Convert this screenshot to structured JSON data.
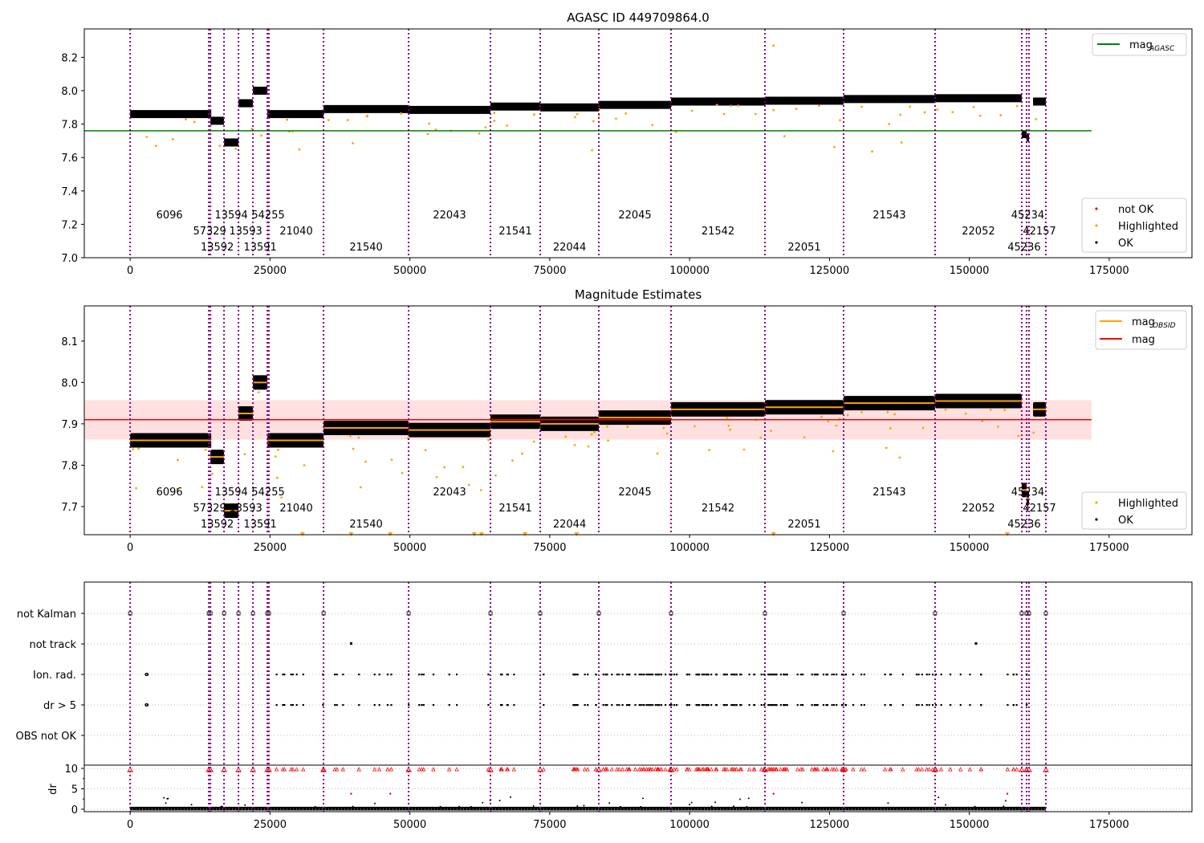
{
  "chart_data": [
    {
      "type": "scatter",
      "title": "AGASC ID 449709864.0",
      "xlim": [
        -8200,
        189800
      ],
      "ylim": [
        7.0,
        8.37
      ],
      "xticks": [
        0,
        25000,
        50000,
        75000,
        100000,
        125000,
        150000,
        175000
      ],
      "yticks": [
        "7.0",
        "7.2",
        "7.4",
        "7.6",
        "7.8",
        "8.0",
        "8.2"
      ],
      "mag_agasc": 7.76,
      "legend": {
        "placement": "top-right",
        "line_label": "mag",
        "line_sub": "AGASC"
      },
      "legend2": {
        "placement": "bottom-right",
        "entries": [
          "not OK",
          "Highlighted",
          "OK"
        ]
      }
    },
    {
      "type": "scatter",
      "title": "Magnitude Estimates",
      "xlim": [
        -8200,
        189800
      ],
      "ylim": [
        7.632,
        8.185
      ],
      "yticks": [
        "7.7",
        "7.8",
        "7.9",
        "8.0",
        "8.1"
      ],
      "mag": 7.91,
      "mag_band": [
        7.862,
        7.957
      ],
      "legend": {
        "placement": "top-right",
        "entries": [
          {
            "label": "mag",
            "sub": "OBSID"
          },
          {
            "label": "mag",
            "sub": ""
          }
        ]
      },
      "legend2": {
        "placement": "bottom-right",
        "entries": [
          "Highlighted",
          "OK"
        ]
      }
    },
    {
      "type": "scatter",
      "title": "",
      "categories": [
        "not Kalman",
        "not track",
        "Ion. rad.",
        "dr > 5",
        "OBS not OK"
      ],
      "dr_ylabel": "dr",
      "dr_ylim": [
        -0.6,
        10.8
      ],
      "dr_yticks": [
        "0",
        "5",
        "10"
      ]
    }
  ],
  "segments": [
    {
      "obsid": "6096",
      "start": 0,
      "end": 14058,
      "mag": 7.86
    },
    {
      "obsid": "57329",
      "start": 14058,
      "end": 14350,
      "mag": 7.86
    },
    {
      "obsid": "13592",
      "start": 14350,
      "end": 16784,
      "mag": 7.82
    },
    {
      "obsid": "13594",
      "start": 16784,
      "end": 19366,
      "mag": 7.69
    },
    {
      "obsid": "13593",
      "start": 19366,
      "end": 21948,
      "mag": 7.925
    },
    {
      "obsid": "13591",
      "start": 21948,
      "end": 24530,
      "mag": 8.0
    },
    {
      "obsid": "54255",
      "start": 24530,
      "end": 24800,
      "mag": 7.86
    },
    {
      "obsid": "21040",
      "start": 24800,
      "end": 34572,
      "mag": 7.86
    },
    {
      "obsid": "21540",
      "start": 34572,
      "end": 49778,
      "mag": 7.89
    },
    {
      "obsid": "22043",
      "start": 49778,
      "end": 64409,
      "mag": 7.885
    },
    {
      "obsid": "21541",
      "start": 64409,
      "end": 73303,
      "mag": 7.905
    },
    {
      "obsid": "22044",
      "start": 73303,
      "end": 83776,
      "mag": 7.9
    },
    {
      "obsid": "22045",
      "start": 83776,
      "end": 96686,
      "mag": 7.915
    },
    {
      "obsid": "21542",
      "start": 96686,
      "end": 113470,
      "mag": 7.935
    },
    {
      "obsid": "22051",
      "start": 113470,
      "end": 127528,
      "mag": 7.94
    },
    {
      "obsid": "21543",
      "start": 127528,
      "end": 143882,
      "mag": 7.95
    },
    {
      "obsid": "22052",
      "start": 143882,
      "end": 159374,
      "mag": 7.955
    },
    {
      "obsid": "45236",
      "start": 159374,
      "end": 160235,
      "mag": 7.74
    },
    {
      "obsid": "45234",
      "start": 160235,
      "end": 160665,
      "mag": 7.72
    },
    {
      "obsid": "42157",
      "start": 161400,
      "end": 163678,
      "mag": 7.935
    }
  ],
  "colors": {
    "ok": "#000000",
    "highlighted": "#ffa500",
    "not_ok": "#ff0000",
    "agasc": "#008000",
    "mag": "#ff0000",
    "obsid_line": "#ffa500",
    "divider": "#800080",
    "band": "#ffcccc"
  }
}
